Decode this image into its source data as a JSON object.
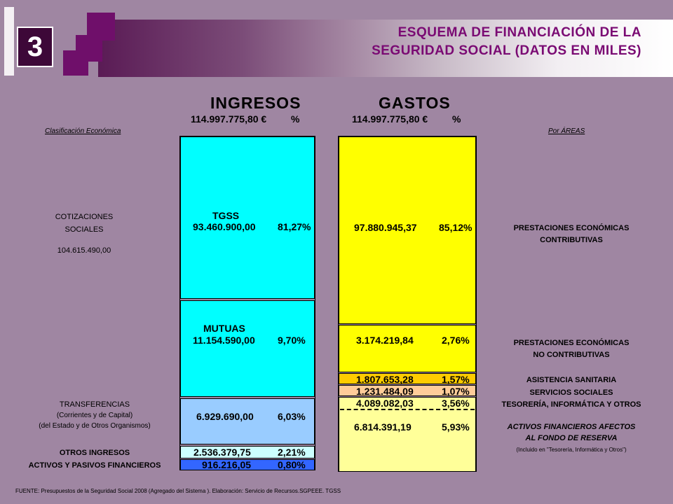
{
  "header": {
    "badge_number": "3",
    "title_line1": "ESQUEMA DE FINANCIACIÓN DE LA",
    "title_line2": "SEGURIDAD SOCIAL (DATOS EN MILES)"
  },
  "ingresos": {
    "heading": "INGRESOS",
    "total": "114.997.775,80 €",
    "pct_heading": "%",
    "left_caption": "Clasificación Económica",
    "segments": [
      {
        "name": "TGSS",
        "value": "93.460.900,00",
        "pct": "81,27%",
        "color": "#00ffff"
      },
      {
        "name": "MUTUAS",
        "value": "11.154.590,00",
        "pct": "9,70%",
        "color": "#00ffff"
      },
      {
        "name": "",
        "value": "6.929.690,00",
        "pct": "6,03%",
        "color": "#99ccff"
      },
      {
        "name": "",
        "value": "2.536.379,75",
        "pct": "2,21%",
        "color": "#ccffff"
      },
      {
        "name": "",
        "value": "916.216,05",
        "pct": "0,80%",
        "color": "#3366ff"
      }
    ],
    "labels": {
      "cotizaciones_1": "COTIZACIONES",
      "cotizaciones_2": "SOCIALES",
      "cotizaciones_total": "104.615.490,00",
      "transferencias_1": "TRANSFERENCIAS",
      "transferencias_2": "(Corrientes y de Capital)",
      "transferencias_3": "(del Estado y de Otros Organismos)",
      "otros": "OTROS INGRESOS",
      "activos": "ACTIVOS Y PASIVOS FINANCIEROS"
    }
  },
  "gastos": {
    "heading": "GASTOS",
    "total": "114.997.775,80 €",
    "pct_heading": "%",
    "right_caption": "Por ÁREAS",
    "segments": [
      {
        "value": "97.880.945,37",
        "pct": "85,12%",
        "color": "#ffff00"
      },
      {
        "value": "3.174.219,84",
        "pct": "2,76%",
        "color": "#ffff00"
      },
      {
        "value": "1.807.653,28",
        "pct": "1,57%",
        "color": "#ffcc00"
      },
      {
        "value": "1.231.484,09",
        "pct": "1,07%",
        "color": "#ffcc99"
      },
      {
        "value": "4.089.082,03",
        "pct": "3,56%",
        "color": "#ffff99"
      },
      {
        "value": "6.814.391,19",
        "pct": "5,93%",
        "color": "#ffff99"
      }
    ],
    "labels": {
      "contributivas_1": "PRESTACIONES ECONÓMICAS",
      "contributivas_2": "CONTRIBUTIVAS",
      "no_contributivas_1": "PRESTACIONES ECONÓMICAS",
      "no_contributivas_2": "NO CONTRIBUTIVAS",
      "sanitaria": "ASISTENCIA SANITARIA",
      "sociales": "SERVICIOS SOCIALES",
      "tesoreria": "TESORERÍA, INFORMÁTICA Y OTROS",
      "activos_1": "ACTIVOS FINANCIEROS AFECTOS",
      "activos_2": "AL FONDO DE RESERVA",
      "activos_3": "(Incluido en \"Tesorería, Informática y Otros\")"
    }
  },
  "source": "FUENTE:  Presupuestos de la Seguridad Social 2008 (Agregado del Sistema ). Elaboración: Servicio de Recursos.SGPEEE. TGSS"
}
